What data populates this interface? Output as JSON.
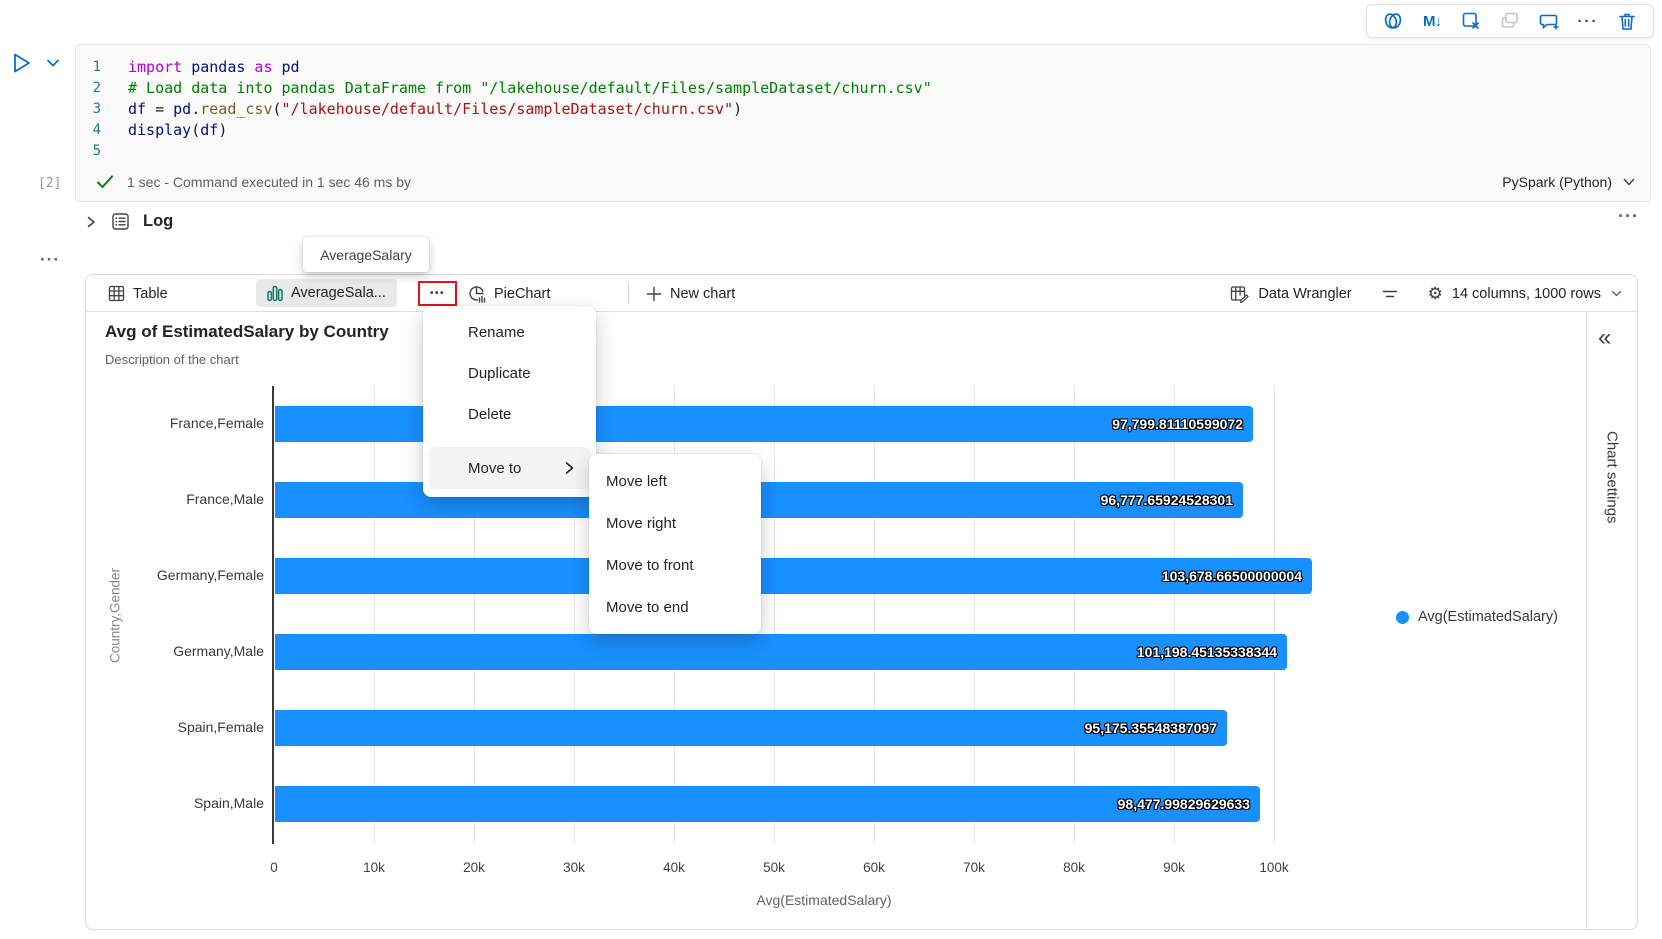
{
  "colors": {
    "accent_blue": "#0F6CBD",
    "bar_blue": "#1890FF",
    "icon_green": "#117865",
    "red_highlight": "#E81123",
    "success_green": "#107C10"
  },
  "cell_toolbar": {
    "icons": [
      {
        "name": "copilot-icon"
      },
      {
        "name": "markdown-icon"
      },
      {
        "name": "clear-output-icon"
      },
      {
        "name": "copy-cell-icon",
        "disabled": true
      },
      {
        "name": "add-comment-icon"
      },
      {
        "name": "more-options-icon"
      },
      {
        "name": "delete-cell-icon"
      }
    ],
    "markdown_label": "M↓",
    "more_label": "···"
  },
  "run_controls": {
    "play_icon": "run-cell-icon",
    "chevron_icon": "run-options-chevron-icon"
  },
  "code_cell": {
    "execution_count": "[2]",
    "run_status": "1 sec - Command executed in 1 sec 46 ms by",
    "kernel": "PySpark (Python)",
    "lines": [
      {
        "num": "1",
        "tokens": [
          {
            "t": "import",
            "c": "kw"
          },
          {
            "t": " pandas",
            "c": "id"
          },
          {
            "t": " as",
            "c": "kw"
          },
          {
            "t": " pd",
            "c": "id"
          }
        ]
      },
      {
        "num": "2",
        "tokens": [
          {
            "t": "# Load data into pandas DataFrame from \"/lakehouse/default/Files/sampleDataset/churn.csv\"",
            "c": "comment"
          }
        ]
      },
      {
        "num": "3",
        "tokens": [
          {
            "t": "df",
            "c": "id"
          },
          {
            "t": " = ",
            "c": "plain"
          },
          {
            "t": "pd",
            "c": "id"
          },
          {
            "t": ".",
            "c": "plain"
          },
          {
            "t": "read_csv",
            "c": "fn"
          },
          {
            "t": "(",
            "c": "plain"
          },
          {
            "t": "\"/lakehouse/default/Files/sampleDataset/churn.csv\"",
            "c": "str"
          },
          {
            "t": ")",
            "c": "plain"
          }
        ]
      },
      {
        "num": "4",
        "tokens": [
          {
            "t": "display",
            "c": "id"
          },
          {
            "t": "(",
            "c": "plain"
          },
          {
            "t": "df",
            "c": "id"
          },
          {
            "t": ")",
            "c": "plain"
          }
        ]
      },
      {
        "num": "5",
        "tokens": []
      }
    ],
    "more_label": "···"
  },
  "log_section": {
    "label": "Log",
    "more_label": "···"
  },
  "tooltip": {
    "text": "AverageSalary"
  },
  "results_toolbar": {
    "tabs": [
      {
        "label": "Table",
        "icon": "table-grid-icon",
        "active": false
      },
      {
        "label": "AverageSala...",
        "icon": "bar-chart-icon",
        "active": true
      },
      {
        "label": "PieChart",
        "icon": "pie-chart-icon",
        "active": false
      }
    ],
    "more_button_label": "•••",
    "new_chart_label": "New chart",
    "data_wrangler_label": "Data Wrangler",
    "summary_label": "14 columns, 1000 rows",
    "gear_glyph": "⚙"
  },
  "context_menu": {
    "items": [
      "Rename",
      "Duplicate",
      "Delete"
    ],
    "move_to": {
      "label": "Move to",
      "submenu": [
        "Move left",
        "Move right",
        "Move to front",
        "Move to end"
      ]
    }
  },
  "chart_settings": {
    "label": "Chart settings",
    "collapse_glyph": "«"
  },
  "chart_data": {
    "type": "bar",
    "orientation": "horizontal",
    "title": "Avg of EstimatedSalary by Country",
    "subtitle": "Description of the chart",
    "categories": [
      "France,Female",
      "France,Male",
      "Germany,Female",
      "Germany,Male",
      "Spain,Female",
      "Spain,Male"
    ],
    "values": [
      97799.81110599072,
      96777.65924528301,
      103678.66500000004,
      101198.45135338344,
      95175.35548387097,
      98477.99829629633
    ],
    "value_labels": [
      "97,799.81110599072",
      "96,777.65924528301",
      "103,678.66500000004",
      "101,198.45135338344",
      "95,175.35548387097",
      "98,477.99829629633"
    ],
    "xlabel": "Avg(EstimatedSalary)",
    "ylabel": "Country,Gender",
    "xticks": [
      "0",
      "10k",
      "20k",
      "30k",
      "40k",
      "50k",
      "60k",
      "70k",
      "80k",
      "90k",
      "100k"
    ],
    "xlim": [
      0,
      110000
    ],
    "grid": true,
    "bar_color": "#1890FF",
    "legend": {
      "label": "Avg(EstimatedSalary)",
      "color": "#1890FF",
      "position": "right"
    }
  }
}
